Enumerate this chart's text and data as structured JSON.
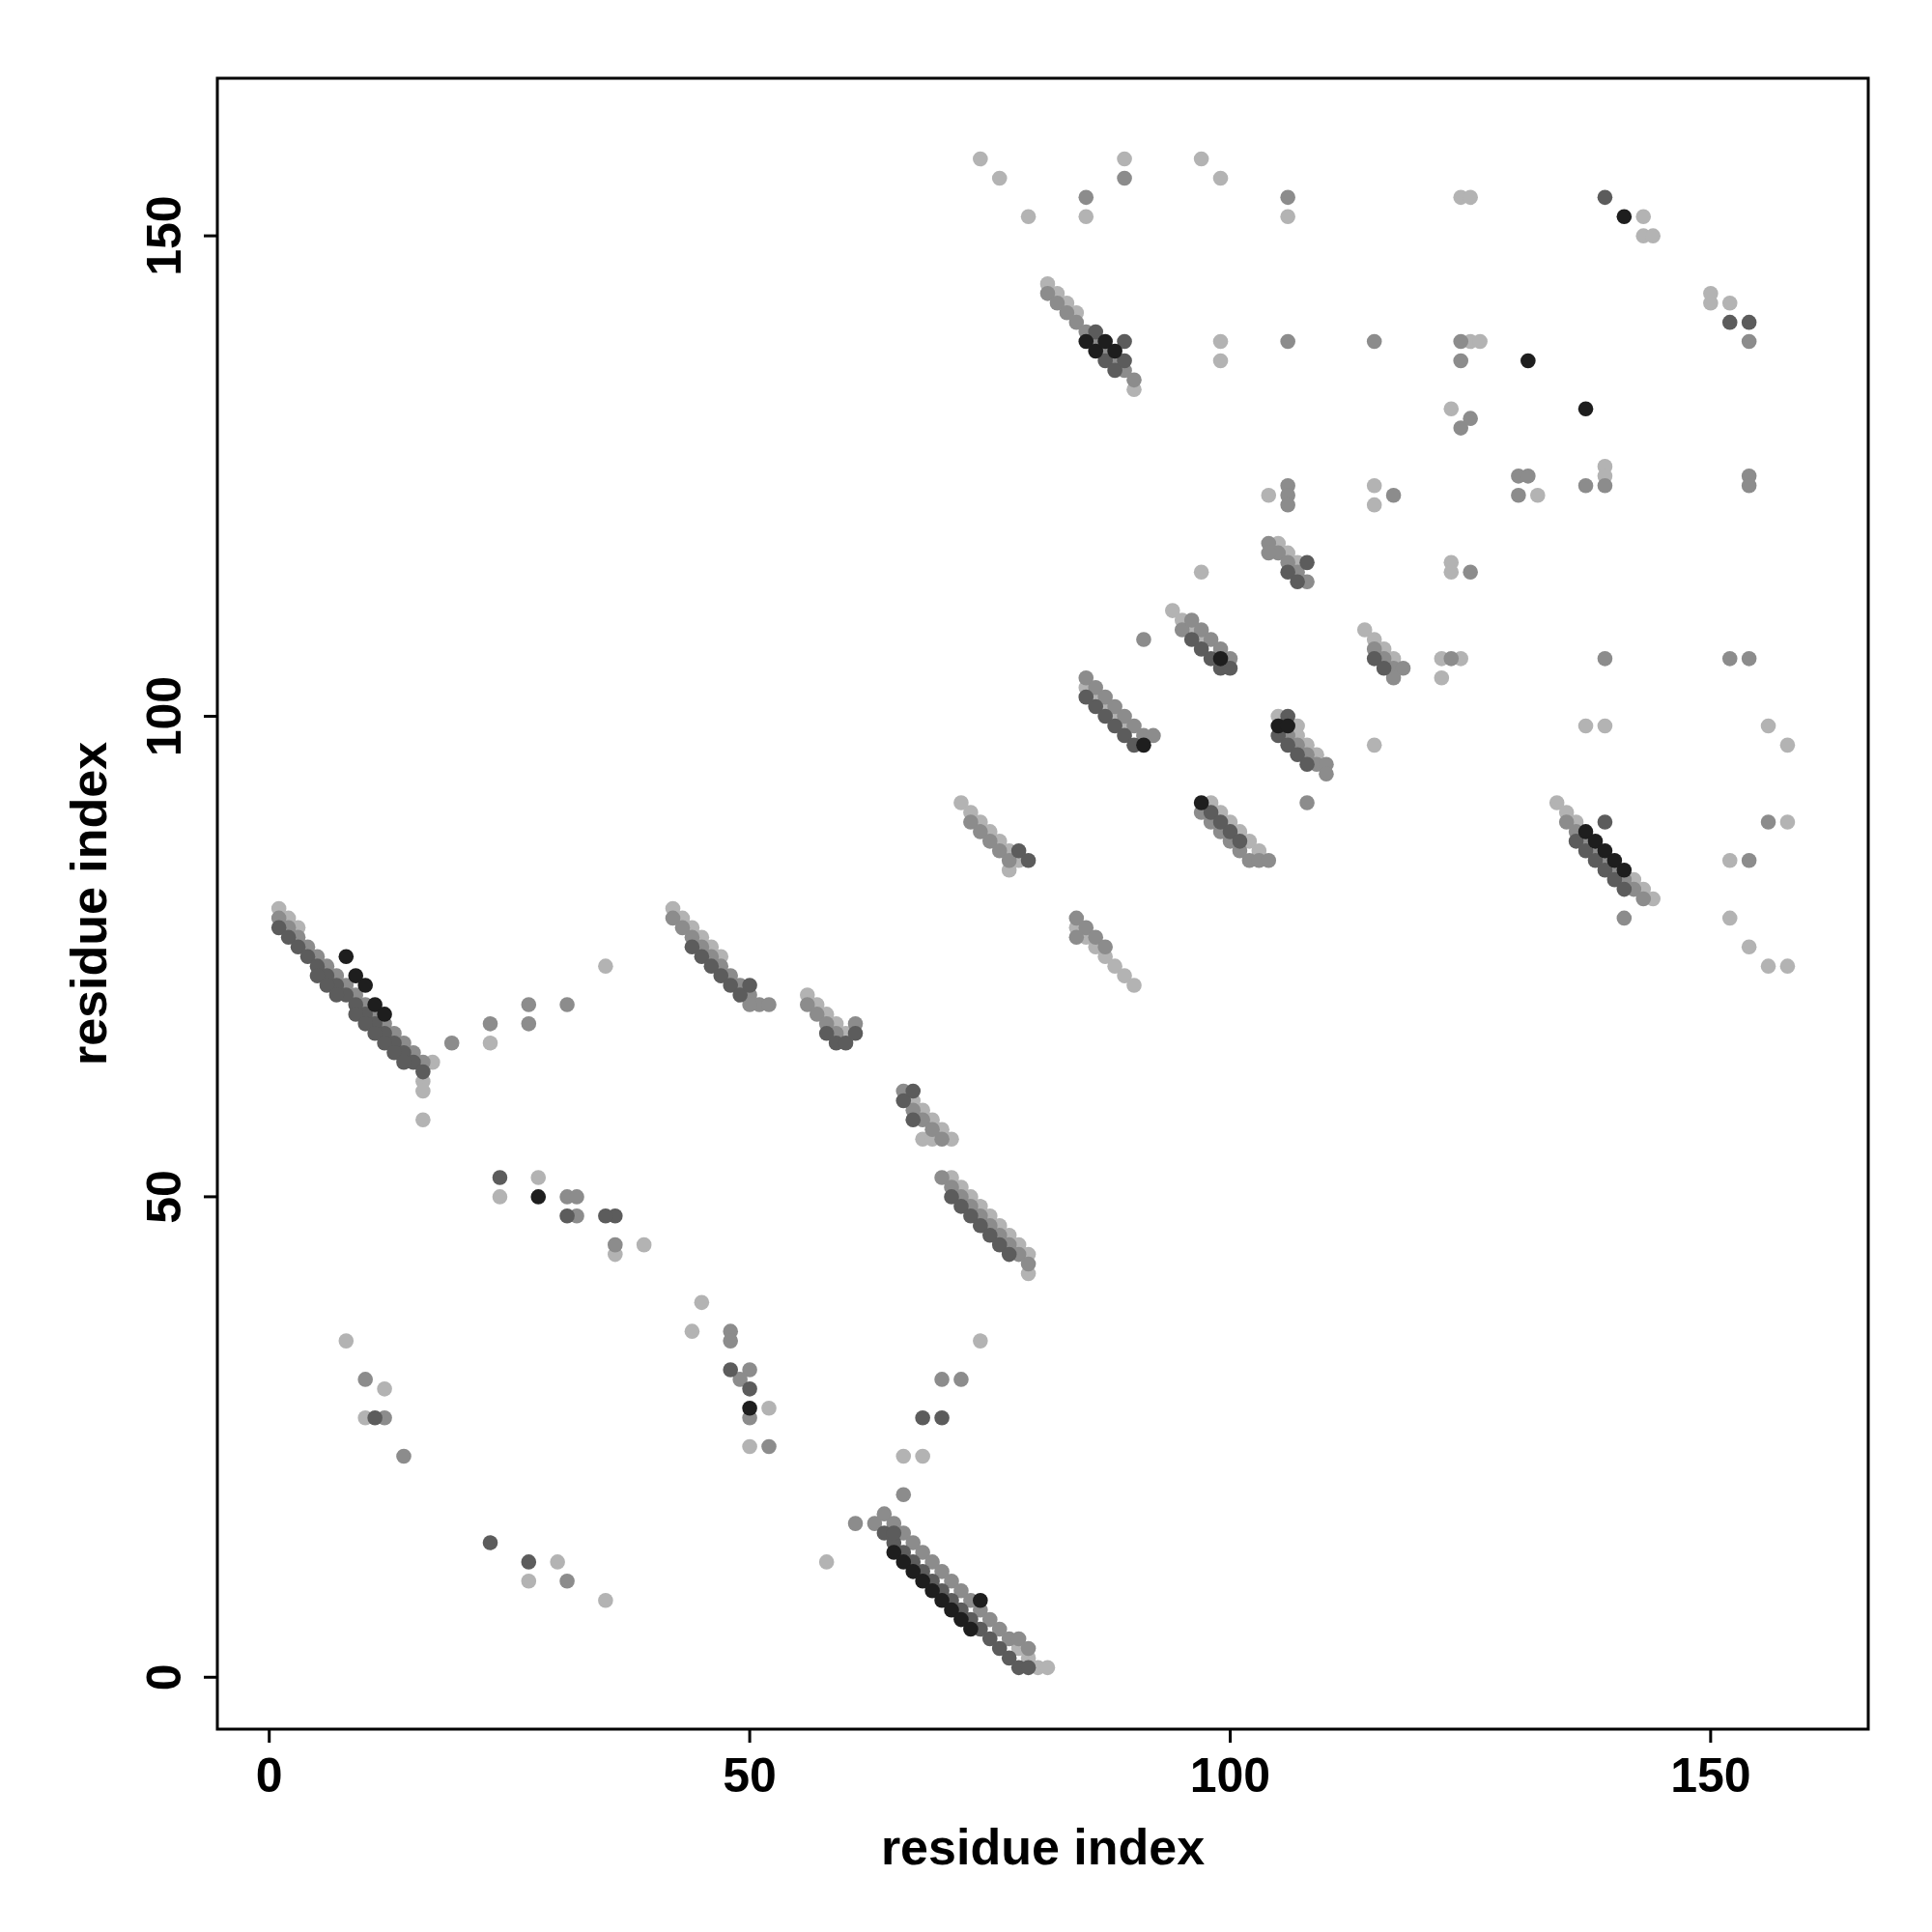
{
  "chart_data": {
    "type": "scatter",
    "xlabel": "residue index",
    "ylabel": "residue index",
    "xlim": [
      -5.4,
      166.4
    ],
    "ylim": [
      -5.4,
      166.4
    ],
    "xticks": [
      0,
      50,
      100,
      150
    ],
    "yticks": [
      0,
      50,
      100,
      150
    ],
    "marker": "circle",
    "series": [
      {
        "color": "#b3b3b3",
        "x": [
          1,
          2,
          3,
          16,
          16,
          17,
          42,
          43,
          44,
          45,
          46,
          47,
          56,
          57,
          58,
          59,
          60,
          79,
          80,
          81,
          78,
          67,
          68,
          69,
          70,
          71,
          68,
          69,
          71,
          72,
          73,
          74,
          75,
          76,
          77,
          78,
          79,
          79,
          72,
          73,
          74,
          75,
          76,
          77,
          78,
          77,
          84,
          85,
          86,
          87,
          88,
          89,
          90,
          81,
          82,
          83,
          84,
          90,
          85,
          86,
          87,
          88,
          89,
          98,
          99,
          100,
          101,
          102,
          103,
          94,
          95,
          96,
          97,
          105,
          107,
          107,
          108,
          109,
          105,
          106,
          107,
          114,
          115,
          116,
          117,
          134,
          135,
          136,
          142,
          143,
          144,
          16,
          23,
          24,
          28,
          35,
          39,
          36,
          8,
          12,
          10,
          27,
          30,
          35,
          45,
          44,
          52,
          50,
          58,
          66,
          68,
          74,
          74,
          76,
          79,
          85,
          89,
          97,
          99,
          106,
          124,
          125,
          143,
          143,
          144,
          99,
          99,
          125,
          126,
          150,
          150,
          152,
          123,
          139,
          139,
          132,
          104,
          115,
          115,
          97,
          123,
          123,
          122,
          122,
          124,
          115,
          137,
          139,
          156,
          158,
          158,
          152,
          152,
          154,
          156,
          158
        ],
        "values": [
          80,
          79,
          78,
          62,
          61,
          64,
          80,
          79,
          78,
          77,
          76,
          75,
          71,
          70,
          69,
          68,
          67,
          2,
          1,
          1,
          3,
          60,
          59,
          58,
          57,
          56,
          56,
          56,
          52,
          51,
          50,
          49,
          48,
          47,
          46,
          45,
          44,
          42,
          91,
          90,
          89,
          88,
          87,
          86,
          85,
          84,
          78,
          77,
          76,
          75,
          74,
          73,
          72,
          145,
          144,
          143,
          142,
          134,
          103,
          102,
          101,
          100,
          99,
          91,
          90,
          89,
          88,
          87,
          86,
          111,
          110,
          109,
          108,
          100,
          99,
          98,
          97,
          96,
          118,
          117,
          116,
          109,
          108,
          107,
          106,
          91,
          90,
          89,
          83,
          82,
          81,
          58,
          66,
          50,
          52,
          74,
          45,
          44,
          35,
          30,
          27,
          10,
          12,
          8,
          39,
          36,
          28,
          24,
          12,
          23,
          23,
          35,
          158,
          156,
          152,
          152,
          158,
          158,
          156,
          152,
          154,
          154,
          152,
          150,
          150,
          139,
          137,
          139,
          139,
          144,
          143,
          143,
          132,
          126,
          125,
          123,
          123,
          124,
          122,
          115,
          116,
          115,
          106,
          104,
          106,
          97,
          99,
          99,
          99,
          97,
          89,
          85,
          79,
          76,
          74,
          74
        ]
      },
      {
        "color": "#8c8c8c",
        "x": [
          1,
          2,
          3,
          4,
          5,
          6,
          7,
          8,
          9,
          10,
          11,
          12,
          13,
          14,
          15,
          16,
          42,
          43,
          44,
          45,
          46,
          47,
          48,
          49,
          50,
          51,
          52,
          50,
          56,
          57,
          58,
          59,
          61,
          64,
          65,
          66,
          67,
          68,
          69,
          70,
          71,
          72,
          73,
          74,
          75,
          76,
          77,
          78,
          79,
          63,
          66,
          67,
          68,
          69,
          70,
          70,
          71,
          72,
          73,
          74,
          75,
          76,
          77,
          78,
          79,
          73,
          74,
          75,
          76,
          77,
          84,
          85,
          84,
          86,
          87,
          81,
          82,
          83,
          84,
          85,
          86,
          87,
          88,
          89,
          90,
          85,
          86,
          87,
          88,
          89,
          90,
          91,
          92,
          97,
          98,
          99,
          100,
          101,
          102,
          103,
          104,
          95,
          96,
          97,
          98,
          99,
          100,
          106,
          107,
          108,
          109,
          110,
          110,
          104,
          105,
          106,
          107,
          108,
          115,
          116,
          117,
          118,
          117,
          135,
          136,
          137,
          138,
          139,
          140,
          141,
          142,
          143,
          19,
          23,
          27,
          27,
          31,
          31,
          32,
          32,
          36,
          10,
          12,
          14,
          31,
          48,
          48,
          50,
          49,
          50,
          52,
          61,
          66,
          72,
          70,
          85,
          89,
          106,
          106,
          115,
          124,
          124,
          154,
          124,
          125,
          137,
          139,
          154,
          154,
          130,
          106,
          106,
          106,
          117,
          104,
          125,
          91,
          123,
          139,
          152,
          154,
          108,
          156,
          154,
          141,
          131,
          130
        ],
        "values": [
          79,
          78,
          77,
          76,
          75,
          74,
          73,
          72,
          71,
          70,
          69,
          68,
          67,
          66,
          65,
          64,
          79,
          78,
          77,
          76,
          75,
          74,
          73,
          72,
          71,
          70,
          70,
          70,
          70,
          69,
          68,
          67,
          68,
          17,
          16,
          15,
          14,
          13,
          12,
          11,
          10,
          9,
          8,
          7,
          6,
          5,
          4,
          4,
          3,
          16,
          61,
          59,
          58,
          57,
          56,
          52,
          51,
          50,
          49,
          48,
          47,
          46,
          45,
          44,
          43,
          89,
          88,
          87,
          86,
          85,
          79,
          78,
          77,
          77,
          76,
          144,
          143,
          142,
          141,
          140,
          139,
          138,
          137,
          136,
          135,
          104,
          103,
          102,
          101,
          100,
          99,
          98,
          98,
          90,
          89,
          88,
          87,
          86,
          85,
          85,
          85,
          109,
          110,
          109,
          108,
          107,
          106,
          98,
          97,
          96,
          95,
          95,
          94,
          118,
          117,
          116,
          115,
          114,
          107,
          106,
          105,
          105,
          104,
          89,
          88,
          87,
          86,
          85,
          84,
          83,
          82,
          81,
          66,
          68,
          68,
          70,
          70,
          50,
          50,
          48,
          45,
          31,
          27,
          23,
          10,
          36,
          35,
          32,
          31,
          27,
          24,
          16,
          19,
          31,
          31,
          154,
          156,
          154,
          139,
          139,
          137,
          139,
          139,
          130,
          131,
          124,
          124,
          125,
          124,
          125,
          124,
          123,
          122,
          123,
          117,
          115,
          108,
          106,
          106,
          106,
          106,
          91,
          89,
          85,
          79,
          125,
          123
        ]
      },
      {
        "color": "#5c5c5c",
        "x": [
          1,
          2,
          3,
          4,
          5,
          6,
          7,
          8,
          9,
          10,
          11,
          12,
          13,
          14,
          15,
          16,
          5,
          6,
          7,
          9,
          10,
          11,
          12,
          13,
          14,
          44,
          45,
          46,
          47,
          48,
          49,
          50,
          58,
          59,
          60,
          61,
          64,
          65,
          66,
          67,
          68,
          69,
          70,
          71,
          72,
          73,
          74,
          75,
          76,
          77,
          78,
          79,
          65,
          66,
          67,
          67,
          71,
          72,
          73,
          74,
          75,
          76,
          77,
          78,
          79,
          86,
          87,
          88,
          89,
          89,
          86,
          87,
          88,
          89,
          90,
          85,
          98,
          99,
          100,
          101,
          96,
          97,
          98,
          99,
          100,
          105,
          106,
          107,
          108,
          106,
          106,
          107,
          108,
          115,
          116,
          136,
          137,
          138,
          139,
          140,
          141,
          139,
          24,
          36,
          35,
          11,
          23,
          27,
          31,
          48,
          50,
          68,
          70,
          139,
          152,
          154
        ],
        "values": [
          78,
          77,
          76,
          75,
          74,
          73,
          72,
          71,
          70,
          69,
          68,
          67,
          66,
          65,
          64,
          63,
          73,
          72,
          71,
          69,
          68,
          67,
          66,
          65,
          64,
          76,
          75,
          74,
          73,
          72,
          71,
          72,
          67,
          66,
          66,
          67,
          15,
          14,
          13,
          12,
          11,
          10,
          9,
          8,
          7,
          6,
          5,
          4,
          3,
          2,
          1,
          1,
          15,
          60,
          61,
          58,
          50,
          49,
          48,
          47,
          46,
          45,
          44,
          86,
          85,
          140,
          137,
          136,
          137,
          139,
          101,
          100,
          99,
          98,
          97,
          102,
          90,
          89,
          88,
          87,
          108,
          107,
          106,
          105,
          105,
          98,
          97,
          96,
          95,
          100,
          115,
          114,
          116,
          106,
          105,
          87,
          86,
          85,
          84,
          83,
          82,
          89,
          52,
          48,
          48,
          27,
          14,
          12,
          48,
          32,
          30,
          27,
          27,
          154,
          141,
          141
        ]
      },
      {
        "color": "#1e1e1e",
        "x": [
          8,
          9,
          10,
          11,
          12,
          65,
          66,
          67,
          68,
          69,
          70,
          71,
          72,
          74,
          73,
          85,
          86,
          87,
          88,
          91,
          97,
          99,
          105,
          106,
          137,
          138,
          139,
          140,
          141,
          28,
          50,
          137,
          131,
          141
        ],
        "values": [
          75,
          73,
          72,
          70,
          69,
          13,
          12,
          11,
          10,
          9,
          8,
          7,
          6,
          8,
          5,
          139,
          138,
          139,
          138,
          97,
          91,
          106,
          99,
          99,
          88,
          87,
          86,
          85,
          84,
          50,
          28,
          132,
          137,
          152
        ]
      }
    ]
  }
}
